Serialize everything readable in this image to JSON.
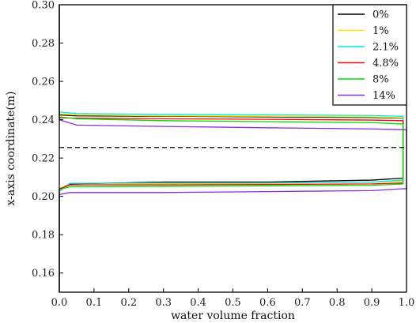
{
  "chart_data": {
    "type": "line",
    "xlabel": "water volume fraction",
    "ylabel": "x-axis coordinate(m)",
    "xlim": [
      0.0,
      1.0
    ],
    "ylim": [
      0.15,
      0.3
    ],
    "x_ticks": [
      "0.0",
      "0.1",
      "0.2",
      "0.3",
      "0.4",
      "0.5",
      "0.6",
      "0.7",
      "0.8",
      "0.9",
      "1.0"
    ],
    "y_ticks": [
      "0.16",
      "0.18",
      "0.20",
      "0.22",
      "0.24",
      "0.26",
      "0.28",
      "0.30"
    ],
    "legend_position": "top-right",
    "reference_line": {
      "y": 0.2255,
      "style": "dashed",
      "color": "#000000"
    },
    "series": [
      {
        "name": "0%",
        "color": "#000000",
        "upper": [
          [
            0.0,
            0.2425
          ],
          [
            0.05,
            0.242
          ],
          [
            0.3,
            0.2418
          ],
          [
            0.6,
            0.2415
          ],
          [
            0.9,
            0.2412
          ],
          [
            0.99,
            0.2408
          ]
        ],
        "lower": [
          [
            0.0,
            0.2035
          ],
          [
            0.03,
            0.2065
          ],
          [
            0.3,
            0.2075
          ],
          [
            0.6,
            0.2075
          ],
          [
            0.9,
            0.2085
          ],
          [
            0.99,
            0.2095
          ]
        ]
      },
      {
        "name": "1%",
        "color": "#ffe000",
        "upper": [
          [
            0.0,
            0.243
          ],
          [
            0.05,
            0.2425
          ],
          [
            0.3,
            0.242
          ],
          [
            0.6,
            0.2418
          ],
          [
            0.9,
            0.2415
          ],
          [
            0.99,
            0.241
          ]
        ],
        "lower": [
          [
            0.0,
            0.203
          ],
          [
            0.03,
            0.206
          ],
          [
            0.3,
            0.2065
          ],
          [
            0.6,
            0.2068
          ],
          [
            0.9,
            0.2075
          ],
          [
            0.99,
            0.208
          ]
        ]
      },
      {
        "name": "2.1%",
        "color": "#00e5e5",
        "upper": [
          [
            0.0,
            0.244
          ],
          [
            0.05,
            0.2432
          ],
          [
            0.3,
            0.2428
          ],
          [
            0.6,
            0.2425
          ],
          [
            0.9,
            0.2422
          ],
          [
            0.99,
            0.2418
          ]
        ],
        "lower": [
          [
            0.0,
            0.2025
          ],
          [
            0.03,
            0.2068
          ],
          [
            0.3,
            0.207
          ],
          [
            0.6,
            0.207
          ],
          [
            0.9,
            0.2075
          ],
          [
            0.99,
            0.2085
          ]
        ]
      },
      {
        "name": "4.8%",
        "color": "#ff0000",
        "upper": [
          [
            0.0,
            0.241
          ],
          [
            0.05,
            0.2408
          ],
          [
            0.3,
            0.2405
          ],
          [
            0.6,
            0.2402
          ],
          [
            0.9,
            0.2398
          ],
          [
            0.99,
            0.2395
          ]
        ],
        "lower": [
          [
            0.0,
            0.204
          ],
          [
            0.03,
            0.206
          ],
          [
            0.3,
            0.206
          ],
          [
            0.6,
            0.2062
          ],
          [
            0.9,
            0.2065
          ],
          [
            0.99,
            0.207
          ]
        ]
      },
      {
        "name": "8%",
        "color": "#00dd00",
        "upper": [
          [
            0.0,
            0.2415
          ],
          [
            0.05,
            0.2405
          ],
          [
            0.3,
            0.2395
          ],
          [
            0.6,
            0.239
          ],
          [
            0.9,
            0.2385
          ],
          [
            0.99,
            0.2378
          ]
        ],
        "lower": [
          [
            0.0,
            0.2035
          ],
          [
            0.03,
            0.205
          ],
          [
            0.3,
            0.2052
          ],
          [
            0.6,
            0.2055
          ],
          [
            0.9,
            0.2058
          ],
          [
            0.99,
            0.2065
          ]
        ]
      },
      {
        "name": "14%",
        "color": "#8a2be2",
        "upper": [
          [
            0.0,
            0.24
          ],
          [
            0.05,
            0.2372
          ],
          [
            0.3,
            0.2365
          ],
          [
            0.6,
            0.2358
          ],
          [
            0.9,
            0.2352
          ],
          [
            0.99,
            0.2348
          ],
          [
            1.0,
            0.2348
          ]
        ],
        "lower": [
          [
            0.0,
            0.201
          ],
          [
            0.03,
            0.202
          ],
          [
            0.3,
            0.202
          ],
          [
            0.6,
            0.2025
          ],
          [
            0.9,
            0.203
          ],
          [
            0.99,
            0.204
          ],
          [
            1.0,
            0.204
          ]
        ]
      }
    ]
  }
}
